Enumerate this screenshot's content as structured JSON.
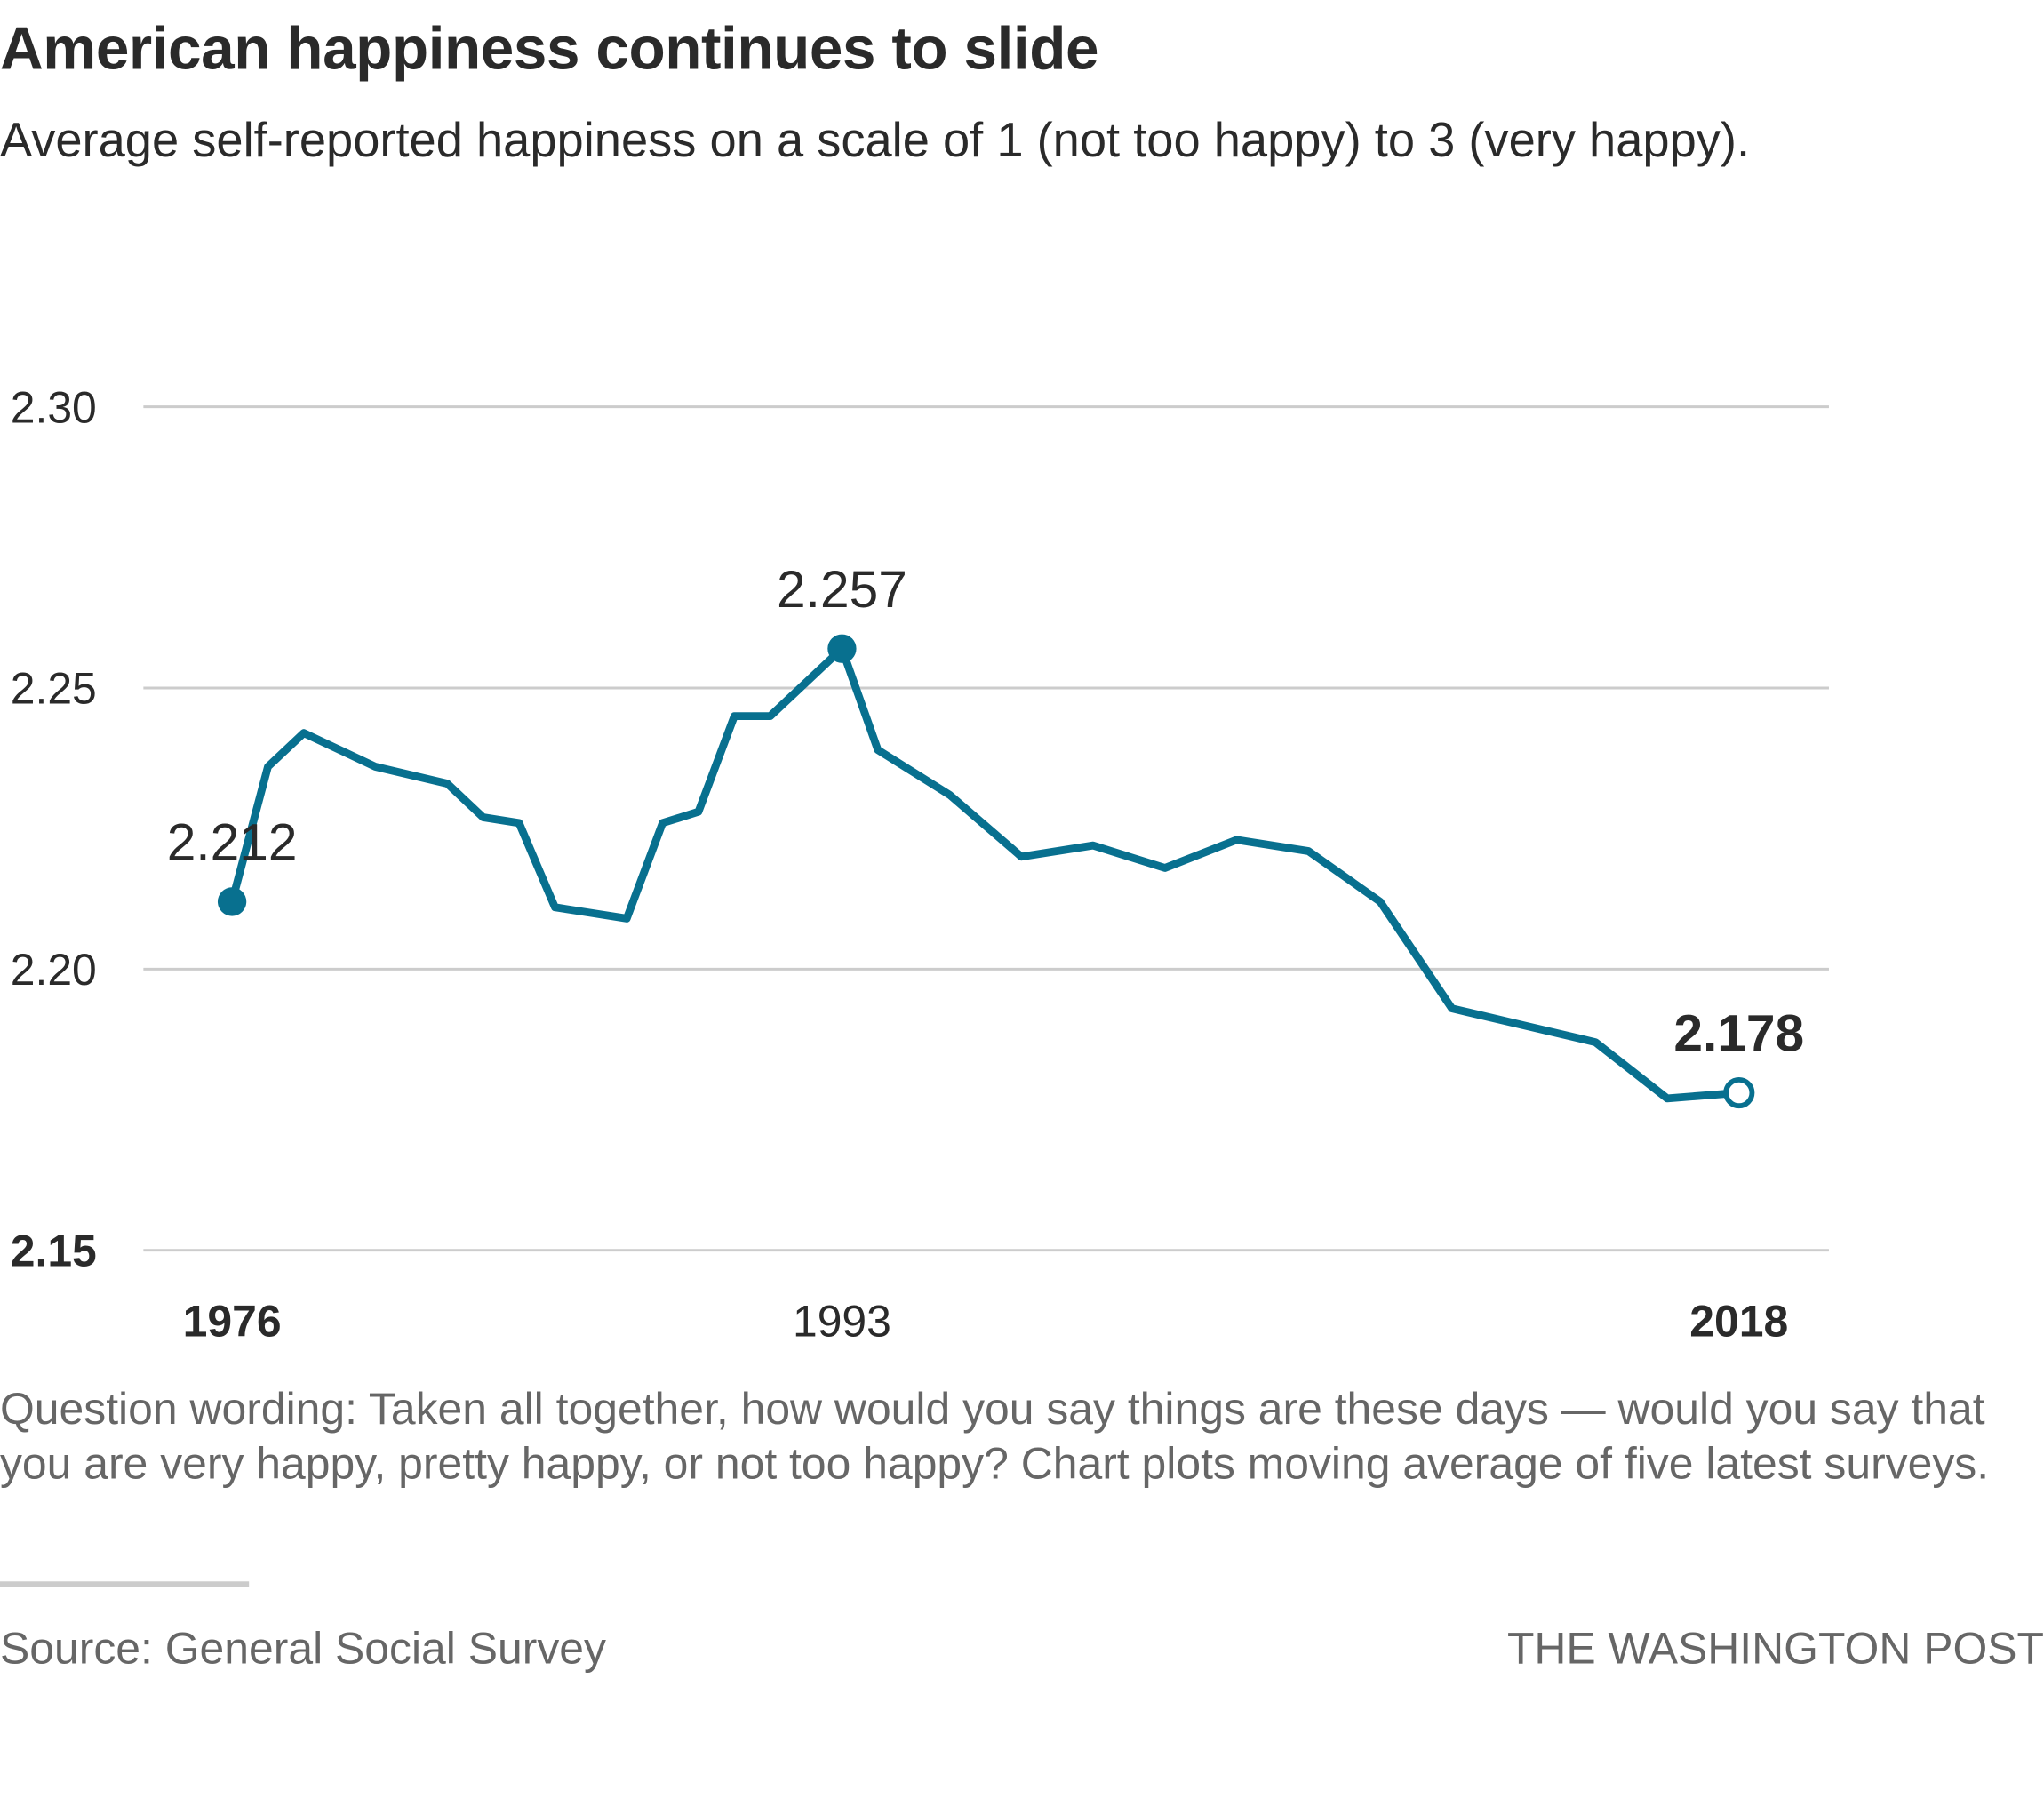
{
  "chart_data": {
    "type": "line",
    "title": "American happiness continues to slide",
    "subtitle": "Average self-reported happiness on a scale of 1 (not too happy) to 3 (very happy).",
    "note": "Question wording: Taken all together, how would you say things are these days — would you say that you are very happy, pretty happy, or not too happy? Chart plots moving average of five latest surveys.",
    "source": "Source: General Social Survey",
    "credit": "THE WASHINGTON POST",
    "x": [
      1976,
      1977,
      1978,
      1980,
      1982,
      1983,
      1984,
      1985,
      1986,
      1987,
      1988,
      1989,
      1990,
      1991,
      1993,
      1994,
      1996,
      1998,
      2000,
      2002,
      2004,
      2006,
      2008,
      2010,
      2012,
      2014,
      2016,
      2018
    ],
    "series": [
      {
        "name": "Average happiness",
        "color": "#08708f",
        "values": [
          2.212,
          2.236,
          2.242,
          2.236,
          2.233,
          2.227,
          2.226,
          2.211,
          2.21,
          2.209,
          2.226,
          2.228,
          2.245,
          2.245,
          2.257,
          2.239,
          2.231,
          2.22,
          2.222,
          2.218,
          2.223,
          2.221,
          2.212,
          2.193,
          2.19,
          2.187,
          2.177,
          2.178
        ]
      }
    ],
    "xlim": [
      1976,
      2018
    ],
    "xticks": [
      1976,
      1993,
      2018
    ],
    "ylim": [
      2.15,
      2.3
    ],
    "yticks": [
      {
        "value": 2.3,
        "label": "2.30"
      },
      2.25,
      {
        "value": 2.2,
        "label": "2.20"
      },
      2.15
    ],
    "grid": true
  }
}
